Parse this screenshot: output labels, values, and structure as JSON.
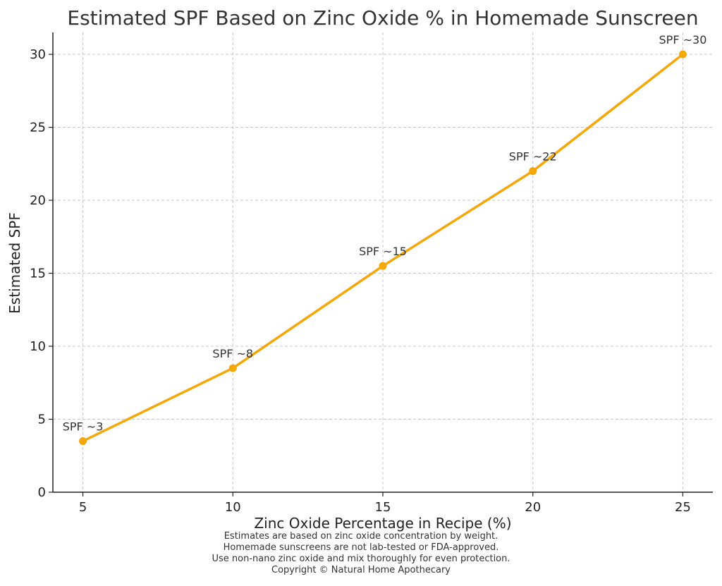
{
  "chart_data": {
    "type": "line",
    "title": "Estimated SPF Based on Zinc Oxide % in Homemade Sunscreen",
    "xlabel": "Zinc Oxide Percentage in Recipe (%)",
    "ylabel": "Estimated SPF",
    "x": [
      5,
      10,
      15,
      20,
      25
    ],
    "series": [
      {
        "values": [
          3.5,
          8.5,
          15.5,
          22,
          30
        ],
        "labels": [
          "SPF ~3",
          "SPF ~8",
          "SPF ~15",
          "SPF ~22",
          "SPF ~30"
        ],
        "color": "#f5a80a"
      }
    ],
    "xticks": [
      5,
      10,
      15,
      20,
      25
    ],
    "yticks": [
      0,
      5,
      10,
      15,
      20,
      25,
      30
    ],
    "xlim": [
      4,
      26
    ],
    "ylim": [
      0,
      31.5
    ],
    "grid": true,
    "legend": "none"
  },
  "notes": [
    "Estimates are based on zinc oxide concentration by weight.",
    "Homemade sunscreens are not lab-tested or FDA-approved.",
    "Use non-nano zinc oxide and mix thoroughly for even protection.",
    "Copyright © Natural Home Apothecary"
  ]
}
